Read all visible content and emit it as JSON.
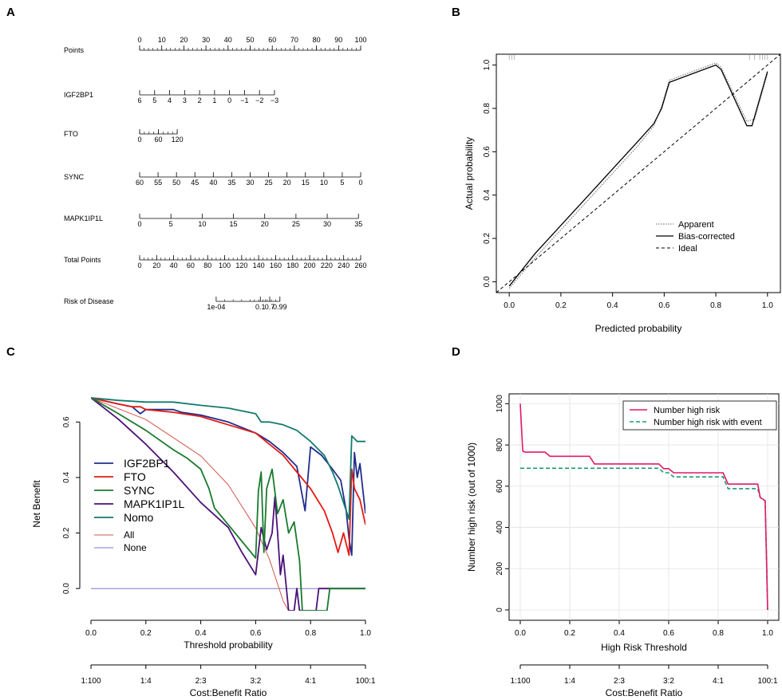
{
  "panels": {
    "a": {
      "letter": "A"
    },
    "b": {
      "letter": "B"
    },
    "c": {
      "letter": "C"
    },
    "d": {
      "letter": "D"
    }
  },
  "chart_data": [
    {
      "type": "nomogram",
      "rows": [
        {
          "label": "Points",
          "ticks": [
            "0",
            "10",
            "20",
            "30",
            "40",
            "50",
            "60",
            "70",
            "80",
            "90",
            "100"
          ],
          "range": [
            0,
            100
          ]
        },
        {
          "label": "IGF2BP1",
          "ticks": [
            "6",
            "5",
            "4",
            "3",
            "2",
            "1",
            "0",
            "−1",
            "−2",
            "−3"
          ],
          "points_range": [
            0,
            61
          ]
        },
        {
          "label": "FTO",
          "ticks": [
            "0",
            "60",
            "120"
          ],
          "points_range": [
            0,
            17
          ]
        },
        {
          "label": "SYNC",
          "ticks": [
            "60",
            "55",
            "50",
            "45",
            "40",
            "35",
            "30",
            "25",
            "20",
            "15",
            "10",
            "5",
            "0"
          ],
          "points_range": [
            0,
            100
          ]
        },
        {
          "label": "MAPK1IP1L",
          "ticks": [
            "0",
            "5",
            "10",
            "15",
            "20",
            "25",
            "30",
            "35"
          ],
          "points_range": [
            0,
            99
          ]
        },
        {
          "label": "Total Points",
          "ticks": [
            "0",
            "20",
            "40",
            "60",
            "80",
            "100",
            "120",
            "140",
            "160",
            "180",
            "200",
            "220",
            "240",
            "260"
          ],
          "range": [
            0,
            260
          ]
        },
        {
          "label": "Risk of Disease",
          "ticks": [
            "1e-04",
            "0.1",
            "0.7",
            "0.99"
          ],
          "total_points_range": [
            90,
            165
          ]
        }
      ]
    },
    {
      "type": "line",
      "xlabel": "Predicted probability",
      "ylabel": "Actual probability",
      "xlim": [
        -0.05,
        1.05
      ],
      "ylim": [
        -0.05,
        1.05
      ],
      "xticks": [
        "0.0",
        "0.2",
        "0.4",
        "0.6",
        "0.8",
        "1.0"
      ],
      "yticks": [
        "0.0",
        "0.2",
        "0.4",
        "0.6",
        "0.8",
        "1.0"
      ],
      "series": [
        {
          "name": "Apparent",
          "style": "dotted",
          "x": [
            0,
            0.1,
            0.2,
            0.3,
            0.4,
            0.5,
            0.56,
            0.59,
            0.62,
            0.8,
            0.82,
            0.92,
            0.95,
            1.0
          ],
          "y": [
            -0.03,
            0.11,
            0.24,
            0.37,
            0.5,
            0.63,
            0.72,
            0.81,
            0.93,
            1.01,
            0.99,
            0.74,
            0.75,
            0.96
          ]
        },
        {
          "name": "Bias-corrected",
          "style": "solid",
          "x": [
            0,
            0.1,
            0.2,
            0.3,
            0.4,
            0.5,
            0.56,
            0.59,
            0.62,
            0.8,
            0.82,
            0.92,
            0.94,
            1.0
          ],
          "y": [
            -0.02,
            0.13,
            0.26,
            0.39,
            0.52,
            0.65,
            0.73,
            0.8,
            0.92,
            1.0,
            0.98,
            0.72,
            0.72,
            0.97
          ]
        },
        {
          "name": "Ideal",
          "style": "dashed",
          "x": [
            -0.05,
            1.05
          ],
          "y": [
            -0.05,
            1.05
          ]
        }
      ],
      "rug_top": [
        0.0,
        0.01,
        0.02,
        0.93,
        0.95,
        0.97,
        0.98,
        0.99,
        1.0
      ],
      "legend": [
        "Apparent",
        "Bias-corrected",
        "Ideal"
      ],
      "legend_position": "bottom-right"
    },
    {
      "type": "line",
      "xlabel": "Threshold probability",
      "xlabel2": "Cost:Benefit Ratio",
      "ylabel": "Net Benefit",
      "xlim": [
        0,
        1
      ],
      "ylim": [
        -0.08,
        0.69
      ],
      "xticks": [
        "0.0",
        "0.2",
        "0.4",
        "0.6",
        "0.8",
        "1.0"
      ],
      "yticks": [
        "0.0",
        "0.2",
        "0.4",
        "0.6"
      ],
      "x2ticks": [
        "1:100",
        "1:4",
        "2:3",
        "3:2",
        "4:1",
        "100:1"
      ],
      "series": [
        {
          "name": "IGF2BP1",
          "color": "#1f2e8c",
          "x": [
            0,
            0.1,
            0.15,
            0.18,
            0.2,
            0.3,
            0.33,
            0.4,
            0.5,
            0.6,
            0.65,
            0.7,
            0.75,
            0.78,
            0.8,
            0.84,
            0.88,
            0.91,
            0.93,
            0.94,
            0.95,
            0.96,
            0.97,
            0.98,
            1.0
          ],
          "y": [
            0.687,
            0.665,
            0.655,
            0.63,
            0.645,
            0.645,
            0.635,
            0.625,
            0.6,
            0.56,
            0.53,
            0.49,
            0.44,
            0.28,
            0.51,
            0.48,
            0.43,
            0.39,
            0.28,
            0.18,
            0.12,
            0.49,
            0.4,
            0.45,
            0.27
          ]
        },
        {
          "name": "FTO",
          "color": "#e51a16",
          "x": [
            0,
            0.1,
            0.15,
            0.18,
            0.2,
            0.3,
            0.4,
            0.5,
            0.6,
            0.65,
            0.7,
            0.75,
            0.8,
            0.85,
            0.88,
            0.9,
            0.92,
            0.94,
            0.95,
            0.96,
            0.98,
            1.0
          ],
          "y": [
            0.687,
            0.665,
            0.655,
            0.655,
            0.645,
            0.635,
            0.62,
            0.59,
            0.56,
            0.52,
            0.48,
            0.42,
            0.36,
            0.28,
            0.2,
            0.13,
            0.2,
            0.12,
            0.43,
            0.36,
            0.32,
            0.23
          ]
        },
        {
          "name": "SYNC",
          "color": "#1a7a2e",
          "x": [
            0,
            0.1,
            0.2,
            0.3,
            0.35,
            0.4,
            0.43,
            0.45,
            0.5,
            0.55,
            0.6,
            0.61,
            0.62,
            0.63,
            0.64,
            0.66,
            0.68,
            0.7,
            0.72,
            0.74,
            0.76,
            0.77,
            0.78,
            0.85,
            0.86,
            0.87,
            1.0
          ],
          "y": [
            0.687,
            0.63,
            0.57,
            0.5,
            0.47,
            0.43,
            0.36,
            0.29,
            0.23,
            0.17,
            0.11,
            0.35,
            0.42,
            0.13,
            0.36,
            0.43,
            0.27,
            0.32,
            0.2,
            0.24,
            0.1,
            -0.08,
            -0.08,
            -0.08,
            -0.08,
            0.0,
            0.0
          ]
        },
        {
          "name": "MAPK1IP1L",
          "color": "#4b1277",
          "x": [
            0,
            0.1,
            0.2,
            0.3,
            0.4,
            0.5,
            0.55,
            0.6,
            0.62,
            0.64,
            0.66,
            0.67,
            0.68,
            0.69,
            0.7,
            0.72,
            0.73,
            0.74,
            0.75,
            0.76,
            0.8,
            0.82,
            0.83,
            1.0
          ],
          "y": [
            0.687,
            0.61,
            0.52,
            0.42,
            0.31,
            0.22,
            0.13,
            0.05,
            0.22,
            0.14,
            0.2,
            0.33,
            0.2,
            0.05,
            0.12,
            -0.08,
            -0.08,
            -0.08,
            0.0,
            -0.08,
            -0.08,
            -0.08,
            0.0,
            0.0
          ]
        },
        {
          "name": "Nomo",
          "color": "#137a6e",
          "x": [
            0,
            0.1,
            0.2,
            0.3,
            0.4,
            0.5,
            0.6,
            0.62,
            0.65,
            0.7,
            0.75,
            0.8,
            0.85,
            0.88,
            0.9,
            0.92,
            0.94,
            0.95,
            0.97,
            0.98,
            1.0
          ],
          "y": [
            0.687,
            0.678,
            0.672,
            0.672,
            0.66,
            0.65,
            0.63,
            0.6,
            0.6,
            0.59,
            0.57,
            0.53,
            0.48,
            0.42,
            0.37,
            0.31,
            0.25,
            0.55,
            0.53,
            0.53,
            0.53
          ]
        },
        {
          "name": "All",
          "color": "#d2574a",
          "x": [
            0,
            0.2,
            0.4,
            0.5,
            0.6,
            0.65,
            0.7,
            0.72
          ],
          "y": [
            0.687,
            0.609,
            0.478,
            0.374,
            0.218,
            0.106,
            -0.044,
            -0.08
          ]
        },
        {
          "name": "None",
          "color": "#7a7ac8",
          "x": [
            0,
            1
          ],
          "y": [
            0,
            0
          ]
        }
      ],
      "legend": [
        "IGF2BP1",
        "FTO",
        "SYNC",
        "MAPK1IP1L",
        "Nomo",
        "All",
        "None"
      ],
      "legend_position": "center-left"
    },
    {
      "type": "line",
      "xlabel": "High Risk Threshold",
      "xlabel2": "Cost:Benefit Ratio",
      "ylabel": "Number high risk (out of 1000)",
      "xlim": [
        0,
        1
      ],
      "ylim": [
        0,
        1040
      ],
      "xticks": [
        "0.0",
        "0.2",
        "0.4",
        "0.6",
        "0.8",
        "1.0"
      ],
      "yticks": [
        "0",
        "200",
        "400",
        "600",
        "800",
        "1000"
      ],
      "x2ticks": [
        "1:100",
        "1:4",
        "2:3",
        "3:2",
        "4:1",
        "100:1"
      ],
      "series": [
        {
          "name": "Number high risk",
          "color": "#e0196a",
          "style": "solid",
          "x": [
            0,
            0.01,
            0.02,
            0.1,
            0.12,
            0.28,
            0.3,
            0.56,
            0.58,
            0.6,
            0.62,
            0.82,
            0.84,
            0.96,
            0.97,
            0.99,
            1.0
          ],
          "y": [
            1000,
            770,
            765,
            765,
            745,
            745,
            708,
            708,
            685,
            685,
            665,
            665,
            610,
            610,
            545,
            530,
            0
          ]
        },
        {
          "name": "Number high risk with event",
          "color": "#1a9a6a",
          "style": "dashed",
          "x": [
            0,
            0.56,
            0.58,
            0.6,
            0.62,
            0.82,
            0.84,
            0.96,
            0.97,
            0.99,
            1.0
          ],
          "y": [
            687,
            687,
            665,
            665,
            645,
            645,
            588,
            588,
            545,
            528,
            0
          ]
        }
      ],
      "legend": [
        "Number high risk",
        "Number high risk with event"
      ],
      "legend_position": "top-right"
    }
  ]
}
